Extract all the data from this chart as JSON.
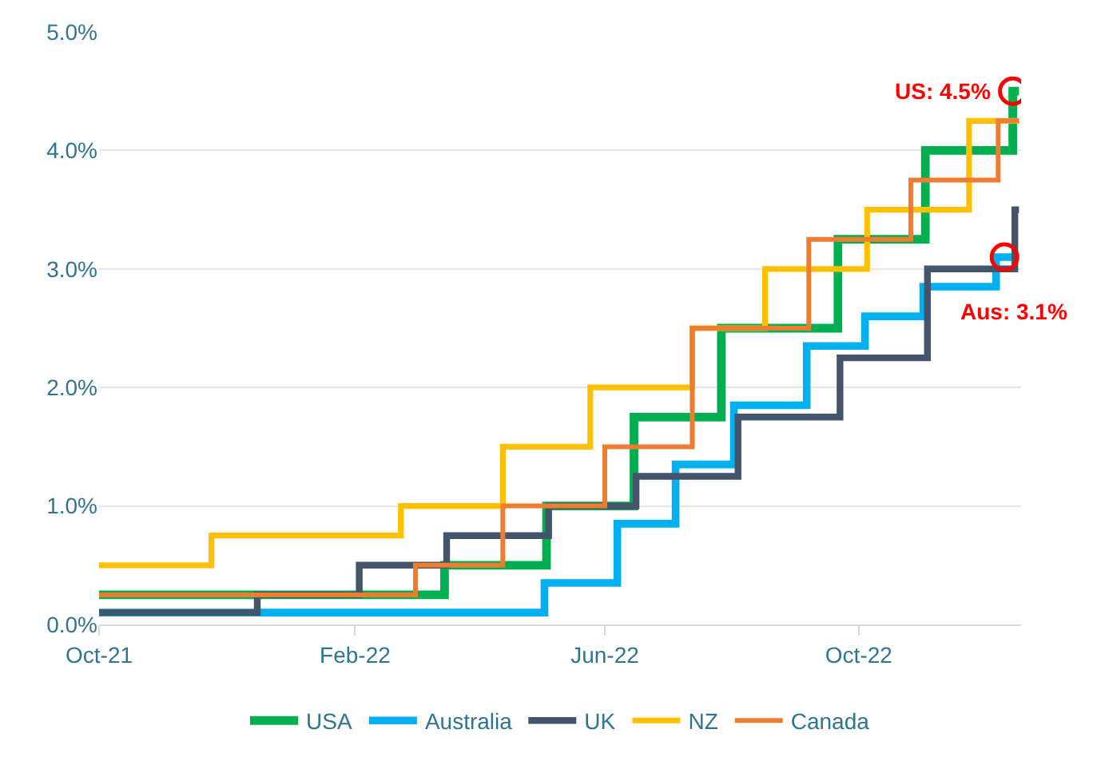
{
  "chart_data": {
    "type": "step",
    "xlim": [
      "2021-10-01",
      "2022-12-18"
    ],
    "xticks": [
      {
        "value": "2021-10-01",
        "label": "Oct-21"
      },
      {
        "value": "2022-02-01",
        "label": "Feb-22"
      },
      {
        "value": "2022-06-01",
        "label": "Jun-22"
      },
      {
        "value": "2022-10-01",
        "label": "Oct-22"
      }
    ],
    "ylim": [
      0,
      5
    ],
    "yticks": [
      {
        "value": 0,
        "label": "0.0%"
      },
      {
        "value": 1,
        "label": "1.0%"
      },
      {
        "value": 2,
        "label": "2.0%"
      },
      {
        "value": 3,
        "label": "3.0%"
      },
      {
        "value": 4,
        "label": "4.0%"
      },
      {
        "value": 5,
        "label": "5.0%"
      }
    ],
    "grid": "y",
    "legend": "bottom",
    "marker": "none",
    "line_style": "solid",
    "series": [
      {
        "name": "USA",
        "color": "#00b050",
        "x": [
          "2021-10-01",
          "2022-03-16",
          "2022-05-04",
          "2022-06-15",
          "2022-07-27",
          "2022-09-21",
          "2022-11-02",
          "2022-12-14",
          "2022-12-17"
        ],
        "values": [
          0.25,
          0.5,
          1.0,
          1.75,
          2.5,
          3.25,
          4.0,
          4.5,
          4.5
        ]
      },
      {
        "name": "Australia",
        "color": "#00b0f0",
        "x": [
          "2021-10-01",
          "2022-05-03",
          "2022-06-07",
          "2022-07-05",
          "2022-08-02",
          "2022-09-06",
          "2022-10-04",
          "2022-11-01",
          "2022-12-06",
          "2022-12-14"
        ],
        "values": [
          0.1,
          0.35,
          0.85,
          1.35,
          1.85,
          2.35,
          2.6,
          2.85,
          3.1,
          3.1
        ]
      },
      {
        "name": "UK",
        "color": "#44546a",
        "x": [
          "2021-10-01",
          "2021-12-16",
          "2022-02-03",
          "2022-03-17",
          "2022-05-05",
          "2022-06-16",
          "2022-08-04",
          "2022-09-22",
          "2022-11-03",
          "2022-12-15",
          "2022-12-17"
        ],
        "values": [
          0.1,
          0.25,
          0.5,
          0.75,
          1.0,
          1.25,
          1.75,
          2.25,
          3.0,
          3.5,
          3.5
        ]
      },
      {
        "name": "NZ",
        "color": "#ffc000",
        "x": [
          "2021-10-01",
          "2021-11-24",
          "2022-02-23",
          "2022-04-13",
          "2022-05-25",
          "2022-07-13",
          "2022-08-17",
          "2022-10-05",
          "2022-11-23",
          "2022-12-17"
        ],
        "values": [
          0.5,
          0.75,
          1.0,
          1.5,
          2.0,
          2.5,
          3.0,
          3.5,
          4.25,
          4.25
        ]
      },
      {
        "name": "Canada",
        "color": "#ed7d31",
        "x": [
          "2021-10-01",
          "2022-03-02",
          "2022-04-13",
          "2022-06-01",
          "2022-07-13",
          "2022-09-07",
          "2022-10-26",
          "2022-12-07",
          "2022-12-17"
        ],
        "values": [
          0.25,
          0.5,
          1.0,
          1.5,
          2.5,
          3.25,
          3.75,
          4.25,
          4.25
        ]
      }
    ],
    "annotations": [
      {
        "text": "US: 4.5%",
        "x": "2022-12-14",
        "y": 4.5
      },
      {
        "text": "Aus: 3.1%",
        "x": "2022-12-10",
        "y": 3.1
      }
    ]
  }
}
